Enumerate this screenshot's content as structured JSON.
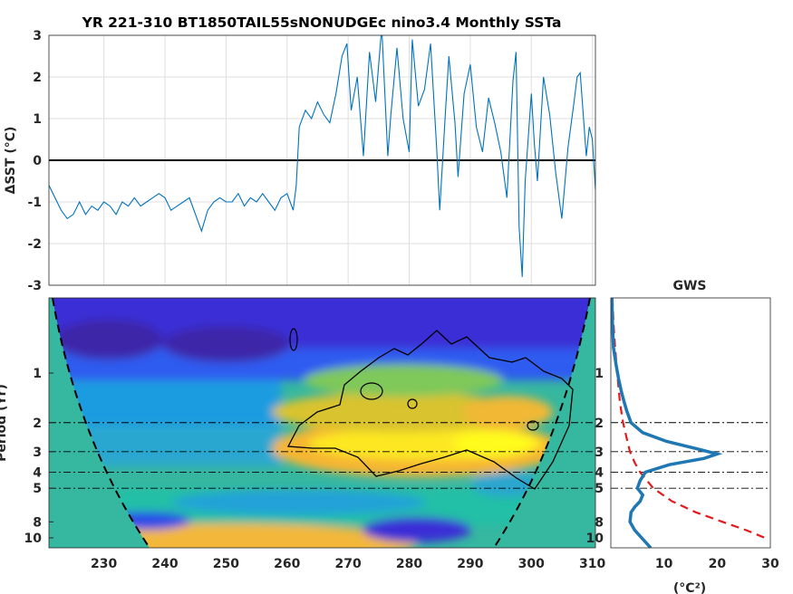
{
  "chart_data": [
    {
      "type": "line",
      "title": "YR 221-310 BT1850TAIL55sNONUDGEc nino3.4 Monthly SSTa",
      "ylabel": "ΔSST (°C)",
      "xlim": [
        221,
        310.5
      ],
      "ylim": [
        -3,
        3
      ],
      "yticks": [
        -3,
        -2,
        -1,
        0,
        1,
        2,
        3
      ],
      "xticks": [
        230,
        240,
        250,
        260,
        270,
        280,
        290,
        300,
        310
      ],
      "grid": true,
      "zero_line": 0,
      "series": [
        {
          "color": "#0072bd",
          "x": [
            221.0,
            222.0,
            223.0,
            224.0,
            225.0,
            226.0,
            227.0,
            228.0,
            229.0,
            230.0,
            231.0,
            232.0,
            233.0,
            234.0,
            235.0,
            236.0,
            237.0,
            238.0,
            239.0,
            240.0,
            241.0,
            242.0,
            243.0,
            244.0,
            245.0,
            246.0,
            247.0,
            248.0,
            249.0,
            250.0,
            251.0,
            252.0,
            253.0,
            254.0,
            255.0,
            256.0,
            257.0,
            258.0,
            259.0,
            260.0,
            261.0,
            261.5,
            262.0,
            263.0,
            264.0,
            265.0,
            266.0,
            267.0,
            268.0,
            269.0,
            269.8,
            270.5,
            271.5,
            272.5,
            273.5,
            274.5,
            275.5,
            276.5,
            277.0,
            278.0,
            279.0,
            280.0,
            280.5,
            281.5,
            282.5,
            283.5,
            284.5,
            285.0,
            286.0,
            286.5,
            287.5,
            288.0,
            289.0,
            290.0,
            291.0,
            292.0,
            293.0,
            294.0,
            295.0,
            296.0,
            297.0,
            297.5,
            298.0,
            298.5,
            299.0,
            300.0,
            300.5,
            301.0,
            302.0,
            303.0,
            304.0,
            305.0,
            306.0,
            307.0,
            307.5,
            308.0,
            309.0,
            309.5,
            310.0,
            310.5
          ],
          "y": [
            -0.6,
            -0.9,
            -1.2,
            -1.4,
            -1.3,
            -1.0,
            -1.3,
            -1.1,
            -1.2,
            -1.0,
            -1.1,
            -1.3,
            -1.0,
            -1.1,
            -0.9,
            -1.1,
            -1.0,
            -0.9,
            -0.8,
            -0.9,
            -1.2,
            -1.1,
            -1.0,
            -0.9,
            -1.3,
            -1.7,
            -1.2,
            -1.0,
            -0.9,
            -1.0,
            -1.0,
            -0.8,
            -1.1,
            -0.9,
            -1.0,
            -0.8,
            -1.0,
            -1.2,
            -0.9,
            -0.8,
            -1.2,
            -0.6,
            0.8,
            1.2,
            1.0,
            1.4,
            1.1,
            0.9,
            1.6,
            2.5,
            2.8,
            1.2,
            2.0,
            0.1,
            2.6,
            1.4,
            3.2,
            0.1,
            1.1,
            2.7,
            1.0,
            0.2,
            2.9,
            1.3,
            1.7,
            2.8,
            0.3,
            -1.2,
            1.3,
            2.5,
            0.9,
            -0.4,
            1.6,
            2.3,
            0.8,
            0.2,
            1.5,
            0.9,
            0.2,
            -0.9,
            1.9,
            2.6,
            -1.6,
            -2.8,
            -0.5,
            1.6,
            0.4,
            -0.5,
            2.0,
            1.1,
            -0.3,
            -1.4,
            0.3,
            1.4,
            2.0,
            2.1,
            0.1,
            0.8,
            0.5,
            -0.7
          ]
        }
      ]
    },
    {
      "type": "heatmap",
      "ylabel": "Period (Yr)",
      "ylim_period": [
        0.35,
        11.5
      ],
      "log_period_axis": true,
      "yticks": [
        1,
        2,
        3,
        4,
        5,
        8,
        10
      ],
      "xticks": [
        230,
        240,
        250,
        260,
        270,
        280,
        290,
        300,
        310
      ],
      "xlim": [
        221,
        310.5
      ],
      "colormap": "parula",
      "reference_lines_period": [
        2,
        3,
        4,
        5
      ],
      "cone_of_influence": true,
      "significance_contours": true
    },
    {
      "type": "line",
      "title": "GWS",
      "xlabel": "(°C²)",
      "xlim": [
        0,
        30
      ],
      "xticks": [
        10,
        20,
        30
      ],
      "yticks": [
        1,
        2,
        3,
        4,
        5,
        8,
        10
      ],
      "reference_lines_period": [
        2,
        3,
        4,
        5
      ],
      "series": [
        {
          "style": "solid",
          "color": "#1f77b4",
          "period": [
            0.35,
            0.5,
            0.7,
            0.9,
            1.1,
            1.3,
            1.5,
            1.7,
            2.0,
            2.3,
            2.6,
            2.9,
            3.1,
            3.3,
            3.6,
            4.0,
            4.5,
            5.0,
            5.5,
            6.0,
            6.5,
            7.0,
            8.0,
            9.0,
            10.0,
            11.5
          ],
          "power": [
            0.2,
            0.3,
            0.5,
            1.0,
            1.5,
            2.0,
            2.5,
            3.0,
            3.8,
            6.0,
            10.5,
            16.5,
            20.0,
            17.5,
            11.0,
            6.5,
            5.5,
            5.0,
            6.0,
            5.5,
            4.5,
            3.8,
            3.6,
            4.5,
            5.8,
            7.5
          ]
        },
        {
          "style": "dashed",
          "color": "#e3191b",
          "period": [
            0.35,
            0.5,
            0.7,
            1.0,
            1.5,
            2.0,
            2.5,
            3.0,
            3.5,
            4.0,
            5.0,
            6.0,
            7.0,
            8.0,
            9.0,
            10.0
          ],
          "power": [
            0.3,
            0.5,
            0.8,
            1.2,
            1.7,
            2.3,
            3.0,
            3.6,
            4.5,
            5.5,
            8.0,
            11.5,
            16.0,
            21.0,
            25.5,
            29.0
          ]
        }
      ]
    }
  ]
}
